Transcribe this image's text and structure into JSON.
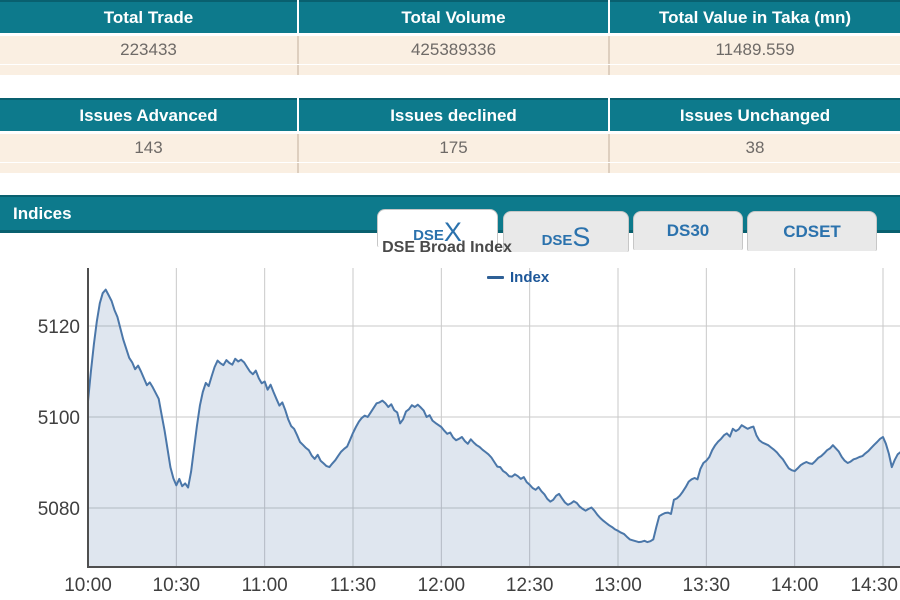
{
  "summary_tables": [
    {
      "headers": [
        "Total Trade",
        "Total Volume",
        "Total Value in Taka (mn)"
      ],
      "values": [
        "223433",
        "425389336",
        "11489.559"
      ]
    },
    {
      "headers": [
        "Issues Advanced",
        "Issues declined",
        "Issues Unchanged"
      ],
      "values": [
        "143",
        "175",
        "38"
      ]
    }
  ],
  "indices_section": {
    "title": "Indices",
    "tabs": [
      {
        "small": "DSE",
        "big": "X",
        "active": true
      },
      {
        "small": "DSE",
        "big": "S",
        "active": false
      },
      {
        "small": "DS30",
        "big": "",
        "active": false
      },
      {
        "small": "CDSET",
        "big": "",
        "active": false
      }
    ]
  },
  "colors": {
    "teal": "#0d7a8c",
    "teal_dark": "#09606f",
    "cream": "#faefe2",
    "tab_text": "#2b72ad",
    "series_line": "#4b77a9",
    "grid": "#c9c9c9",
    "axis": "#4f4f4f",
    "legend_text": "#1d5799"
  },
  "chart_data": {
    "type": "area",
    "title": "DSE Broad Index",
    "legend_position": "top-center",
    "grid": true,
    "legend": [
      {
        "name": "Index",
        "color": "#2f6096"
      }
    ],
    "x_ticks": [
      "10:00",
      "10:30",
      "11:00",
      "11:30",
      "12:00",
      "12:30",
      "13:00",
      "13:30",
      "14:00",
      "14:30"
    ],
    "x_tick_minutes": [
      0,
      30,
      60,
      90,
      120,
      150,
      180,
      210,
      240,
      270
    ],
    "y_ticks": [
      5080,
      5100,
      5120
    ],
    "ylim": [
      5067,
      5133
    ],
    "xlabel": "",
    "ylabel": "",
    "series": [
      {
        "name": "Index",
        "color": "#4b77a9",
        "fill_opacity": 0.18,
        "points": [
          [
            0,
            5103.5
          ],
          [
            1,
            5110
          ],
          [
            2,
            5116
          ],
          [
            3,
            5121
          ],
          [
            4,
            5125
          ],
          [
            5,
            5127.2
          ],
          [
            6,
            5128
          ],
          [
            7,
            5126.8
          ],
          [
            8,
            5125.5
          ],
          [
            9,
            5123.5
          ],
          [
            10,
            5122
          ],
          [
            12,
            5117
          ],
          [
            14,
            5113
          ],
          [
            15,
            5112
          ],
          [
            16,
            5110.5
          ],
          [
            17,
            5111.3
          ],
          [
            18,
            5110
          ],
          [
            20,
            5107
          ],
          [
            21,
            5107.6
          ],
          [
            22,
            5106.5
          ],
          [
            24,
            5104
          ],
          [
            25,
            5100.5
          ],
          [
            26,
            5097
          ],
          [
            27,
            5093
          ],
          [
            28,
            5089
          ],
          [
            29,
            5086.5
          ],
          [
            30,
            5085
          ],
          [
            31,
            5086.4
          ],
          [
            32,
            5084.8
          ],
          [
            33,
            5085.4
          ],
          [
            34,
            5084.5
          ],
          [
            35,
            5088
          ],
          [
            36,
            5093
          ],
          [
            37,
            5098
          ],
          [
            38,
            5102.5
          ],
          [
            39,
            5105.5
          ],
          [
            40,
            5107.5
          ],
          [
            41,
            5106.8
          ],
          [
            42,
            5109
          ],
          [
            43,
            5111
          ],
          [
            44,
            5112.4
          ],
          [
            45,
            5111.8
          ],
          [
            46,
            5111.4
          ],
          [
            47,
            5112.5
          ],
          [
            48,
            5111.9
          ],
          [
            49,
            5111.5
          ],
          [
            50,
            5112.8
          ],
          [
            51,
            5112.2
          ],
          [
            52,
            5112.6
          ],
          [
            53,
            5112
          ],
          [
            54,
            5111
          ],
          [
            55,
            5110
          ],
          [
            56,
            5109.4
          ],
          [
            57,
            5110.2
          ],
          [
            58,
            5108.5
          ],
          [
            59,
            5107.4
          ],
          [
            60,
            5107.8
          ],
          [
            61,
            5106
          ],
          [
            62,
            5107.1
          ],
          [
            63,
            5105.5
          ],
          [
            64,
            5104
          ],
          [
            65,
            5102.5
          ],
          [
            66,
            5103.2
          ],
          [
            67,
            5101.5
          ],
          [
            68,
            5099.5
          ],
          [
            69,
            5098
          ],
          [
            70,
            5097.4
          ],
          [
            71,
            5096
          ],
          [
            72,
            5094.5
          ],
          [
            73,
            5093.9
          ],
          [
            74,
            5093.2
          ],
          [
            75,
            5092.7
          ],
          [
            76,
            5091.5
          ],
          [
            77,
            5090.8
          ],
          [
            78,
            5091.7
          ],
          [
            79,
            5090.4
          ],
          [
            80,
            5089.8
          ],
          [
            81,
            5089.2
          ],
          [
            82,
            5089
          ],
          [
            83,
            5089.8
          ],
          [
            84,
            5090.5
          ],
          [
            85,
            5091.5
          ],
          [
            86,
            5092.4
          ],
          [
            87,
            5093
          ],
          [
            88,
            5093.5
          ],
          [
            89,
            5095
          ],
          [
            90,
            5096.5
          ],
          [
            91,
            5097.8
          ],
          [
            92,
            5099
          ],
          [
            93,
            5099.8
          ],
          [
            94,
            5100.3
          ],
          [
            95,
            5100
          ],
          [
            96,
            5101
          ],
          [
            97,
            5102
          ],
          [
            98,
            5103
          ],
          [
            99,
            5103.2
          ],
          [
            100,
            5103.6
          ],
          [
            101,
            5103
          ],
          [
            102,
            5102.2
          ],
          [
            103,
            5102.8
          ],
          [
            104,
            5101.5
          ],
          [
            105,
            5101
          ],
          [
            106,
            5098.6
          ],
          [
            107,
            5099.5
          ],
          [
            108,
            5101.2
          ],
          [
            109,
            5101.7
          ],
          [
            110,
            5102.6
          ],
          [
            111,
            5102.2
          ],
          [
            112,
            5102.7
          ],
          [
            113,
            5102.1
          ],
          [
            114,
            5101.4
          ],
          [
            115,
            5100
          ],
          [
            116,
            5100.4
          ],
          [
            117,
            5099.2
          ],
          [
            118,
            5098.7
          ],
          [
            120,
            5097.8
          ],
          [
            121,
            5097
          ],
          [
            122,
            5096.3
          ],
          [
            123,
            5096.6
          ],
          [
            124,
            5095.5
          ],
          [
            125,
            5094.9
          ],
          [
            126,
            5095.2
          ],
          [
            127,
            5095.6
          ],
          [
            128,
            5094.7
          ],
          [
            129,
            5094.1
          ],
          [
            130,
            5095.1
          ],
          [
            131,
            5094.4
          ],
          [
            132,
            5093.8
          ],
          [
            133,
            5093.4
          ],
          [
            134,
            5092.8
          ],
          [
            135,
            5092.3
          ],
          [
            136,
            5091.8
          ],
          [
            137,
            5091.1
          ],
          [
            138,
            5090.1
          ],
          [
            139,
            5089.1
          ],
          [
            140,
            5089
          ],
          [
            141,
            5088.1
          ],
          [
            142,
            5087.7
          ],
          [
            143,
            5087
          ],
          [
            144,
            5086.9
          ],
          [
            145,
            5087.4
          ],
          [
            146,
            5087
          ],
          [
            147,
            5086.4
          ],
          [
            148,
            5086.8
          ],
          [
            149,
            5085.7
          ],
          [
            150,
            5085.1
          ],
          [
            151,
            5084.4
          ],
          [
            152,
            5084
          ],
          [
            153,
            5084.6
          ],
          [
            154,
            5083.7
          ],
          [
            155,
            5083
          ],
          [
            156,
            5082
          ],
          [
            157,
            5081.4
          ],
          [
            158,
            5081.8
          ],
          [
            159,
            5082.7
          ],
          [
            160,
            5083.1
          ],
          [
            161,
            5082.1
          ],
          [
            162,
            5081.2
          ],
          [
            163,
            5080.7
          ],
          [
            164,
            5081
          ],
          [
            165,
            5081.5
          ],
          [
            166,
            5081.1
          ],
          [
            167,
            5080.3
          ],
          [
            168,
            5079.8
          ],
          [
            169,
            5079.4
          ],
          [
            170,
            5079.8
          ],
          [
            171,
            5080.1
          ],
          [
            172,
            5079.4
          ],
          [
            173,
            5078.5
          ],
          [
            174,
            5077.8
          ],
          [
            175,
            5077.2
          ],
          [
            176,
            5076.7
          ],
          [
            177,
            5076.2
          ],
          [
            178,
            5075.8
          ],
          [
            179,
            5075.3
          ],
          [
            180,
            5075
          ],
          [
            181,
            5074.6
          ],
          [
            182,
            5074.3
          ],
          [
            183,
            5073.7
          ],
          [
            184,
            5073.1
          ],
          [
            185,
            5072.9
          ],
          [
            186,
            5072.7
          ],
          [
            187,
            5072.5
          ],
          [
            188,
            5072.6
          ],
          [
            189,
            5072.8
          ],
          [
            190,
            5072.5
          ],
          [
            191,
            5072.7
          ],
          [
            192,
            5073.1
          ],
          [
            193,
            5075.8
          ],
          [
            194,
            5078.2
          ],
          [
            195,
            5078.6
          ],
          [
            196,
            5078.9
          ],
          [
            197,
            5079
          ],
          [
            198,
            5078.7
          ],
          [
            199,
            5081.8
          ],
          [
            200,
            5082.1
          ],
          [
            201,
            5082.7
          ],
          [
            202,
            5083.6
          ],
          [
            203,
            5084.6
          ],
          [
            204,
            5085.8
          ],
          [
            205,
            5086.3
          ],
          [
            206,
            5086.6
          ],
          [
            207,
            5086.3
          ],
          [
            208,
            5088.6
          ],
          [
            209,
            5089.9
          ],
          [
            210,
            5090.4
          ],
          [
            211,
            5091.2
          ],
          [
            212,
            5092.7
          ],
          [
            213,
            5093.8
          ],
          [
            214,
            5094.6
          ],
          [
            215,
            5095.2
          ],
          [
            216,
            5096
          ],
          [
            217,
            5096.4
          ],
          [
            218,
            5095.7
          ],
          [
            219,
            5097.4
          ],
          [
            220,
            5096.9
          ],
          [
            221,
            5097.3
          ],
          [
            222,
            5098.2
          ],
          [
            223,
            5097.8
          ],
          [
            224,
            5097.4
          ],
          [
            225,
            5097.7
          ],
          [
            226,
            5097.9
          ],
          [
            227,
            5096
          ],
          [
            228,
            5094.9
          ],
          [
            229,
            5094.4
          ],
          [
            230,
            5094.1
          ],
          [
            231,
            5093.8
          ],
          [
            232,
            5093.3
          ],
          [
            233,
            5092.8
          ],
          [
            234,
            5092.2
          ],
          [
            235,
            5091.4
          ],
          [
            236,
            5090.7
          ],
          [
            237,
            5089.7
          ],
          [
            238,
            5088.7
          ],
          [
            239,
            5088.3
          ],
          [
            240,
            5088.1
          ],
          [
            241,
            5088.7
          ],
          [
            242,
            5089.4
          ],
          [
            243,
            5089.8
          ],
          [
            244,
            5090.1
          ],
          [
            245,
            5089.8
          ],
          [
            246,
            5089.7
          ],
          [
            247,
            5090.3
          ],
          [
            248,
            5091
          ],
          [
            249,
            5091.4
          ],
          [
            250,
            5092
          ],
          [
            251,
            5092.7
          ],
          [
            252,
            5093.1
          ],
          [
            253,
            5093.8
          ],
          [
            254,
            5093.1
          ],
          [
            255,
            5092.4
          ],
          [
            256,
            5091.2
          ],
          [
            257,
            5090.4
          ],
          [
            258,
            5089.9
          ],
          [
            259,
            5090.2
          ],
          [
            260,
            5090.7
          ],
          [
            261,
            5090.9
          ],
          [
            262,
            5091.2
          ],
          [
            263,
            5091.4
          ],
          [
            264,
            5092
          ],
          [
            265,
            5092.5
          ],
          [
            266,
            5093.2
          ],
          [
            267,
            5093.9
          ],
          [
            268,
            5094.5
          ],
          [
            269,
            5095.2
          ],
          [
            270,
            5095.6
          ],
          [
            271,
            5094.1
          ],
          [
            272,
            5091.9
          ],
          [
            273,
            5089
          ],
          [
            274,
            5090.6
          ],
          [
            275,
            5091.8
          ],
          [
            276,
            5092.3
          ]
        ]
      }
    ]
  }
}
